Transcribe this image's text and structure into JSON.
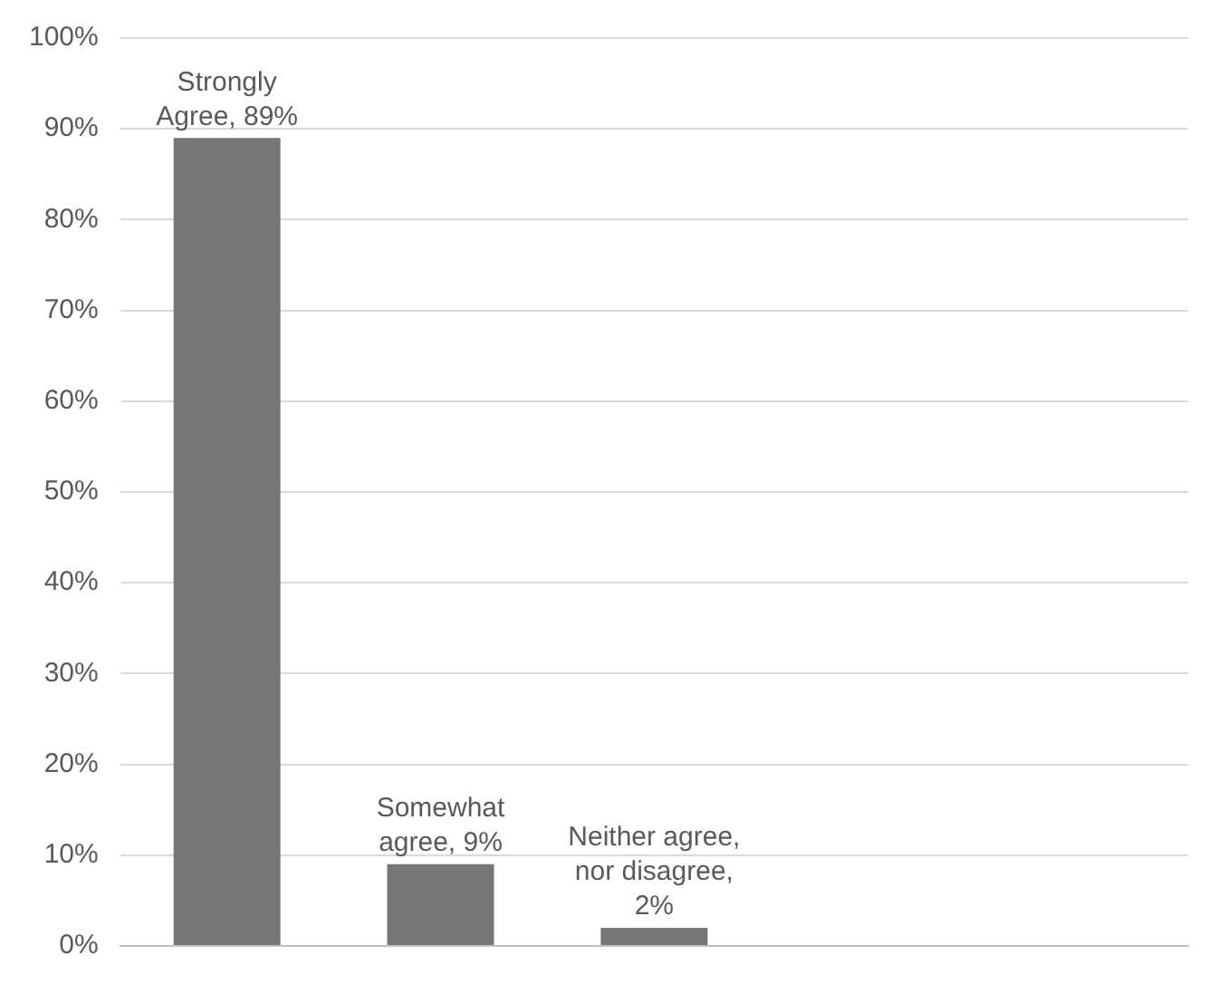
{
  "chart_data": {
    "type": "bar",
    "categories": [
      null,
      null,
      null,
      null,
      null
    ],
    "values": [
      89,
      9,
      2,
      null,
      null
    ],
    "color": "#767676",
    "value_labels": [
      "Strongly\nAgree, 89%",
      "Somewhat\nagree, 9%",
      "Neither agree,\nnor disagree,\n2%",
      null,
      null
    ],
    "ylim": [
      0,
      100
    ],
    "yticks": [
      {
        "value": 0,
        "label": "0%"
      },
      {
        "value": 10,
        "label": "10%"
      },
      {
        "value": 20,
        "label": "20%"
      },
      {
        "value": 30,
        "label": "30%"
      },
      {
        "value": 40,
        "label": "40%"
      },
      {
        "value": 50,
        "label": "50%"
      },
      {
        "value": 60,
        "label": "60%"
      },
      {
        "value": 70,
        "label": "70%"
      },
      {
        "value": 80,
        "label": "80%"
      },
      {
        "value": 90,
        "label": "90%"
      },
      {
        "value": 100,
        "label": "100%"
      }
    ],
    "grid": "y",
    "tick_labels": "y",
    "legend": false
  }
}
